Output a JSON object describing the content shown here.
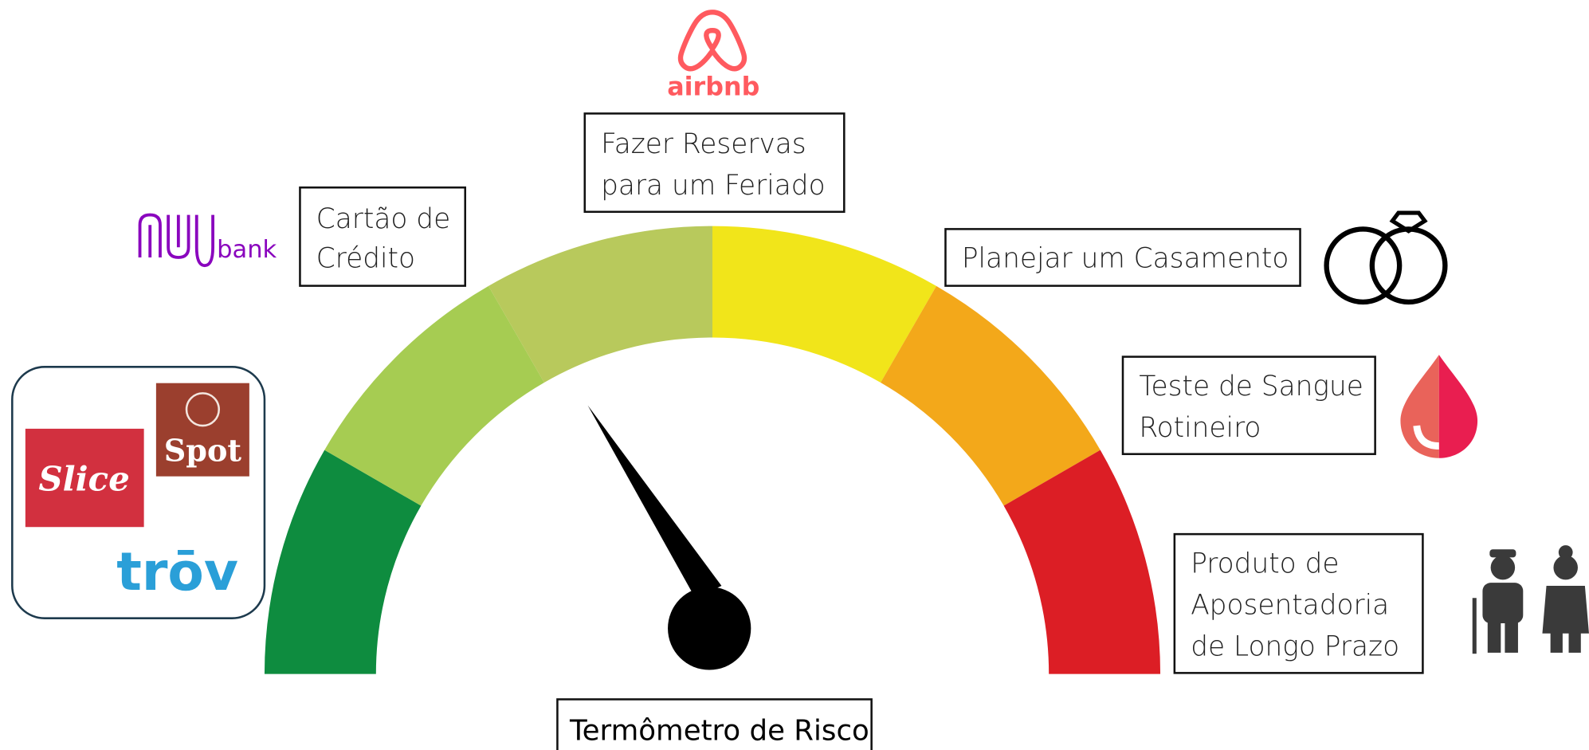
{
  "title": "Termômetro de Risco",
  "items": [
    {
      "lines": [
        "Cartão de",
        "Crédito"
      ]
    },
    {
      "lines": [
        "Fazer Reservas",
        "para um Feriado"
      ]
    },
    {
      "lines": [
        "Planejar um Casamento"
      ]
    },
    {
      "lines": [
        "Teste de Sangue",
        "Rotineiro"
      ]
    },
    {
      "lines": [
        "Produto de",
        "Aposentadoria",
        "de Longo Prazo"
      ]
    }
  ],
  "logos": {
    "airbnb": "airbnb",
    "nubank": "bank",
    "spot": "Spot",
    "slice": "Slice",
    "trov": "trōv"
  }
}
